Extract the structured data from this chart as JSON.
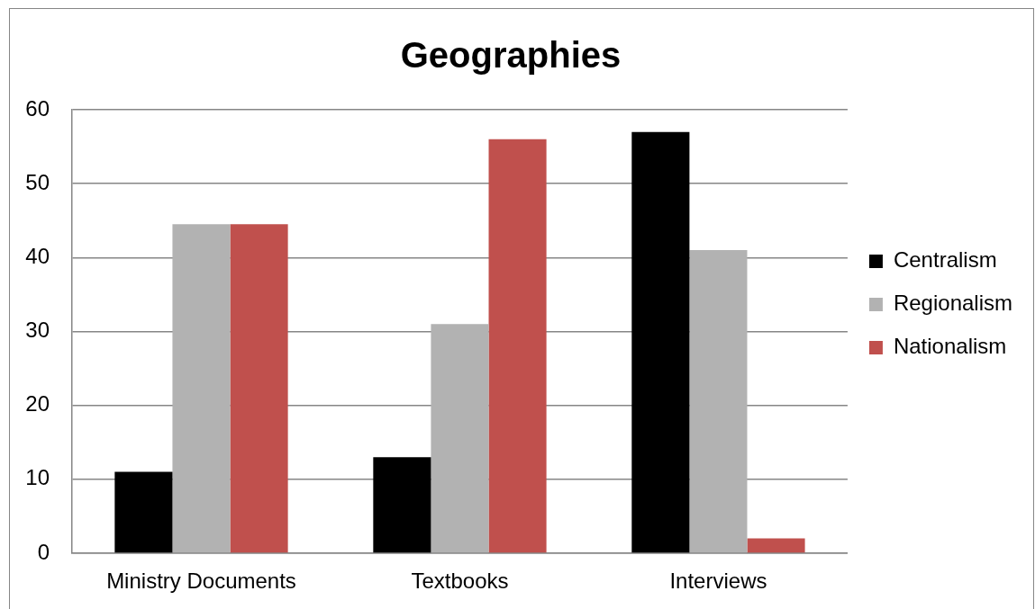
{
  "chart_data": {
    "type": "bar",
    "title": "Geographies",
    "categories": [
      "Ministry Documents",
      "Textbooks",
      "Interviews"
    ],
    "series": [
      {
        "name": "Centralism",
        "color": "#000000",
        "values": [
          11,
          13,
          57
        ]
      },
      {
        "name": "Regionalism",
        "color": "#b2b2b2",
        "values": [
          44.5,
          31,
          41
        ]
      },
      {
        "name": "Nationalism",
        "color": "#c0504d",
        "values": [
          44.5,
          56,
          2
        ]
      }
    ],
    "ylim": [
      0,
      60
    ],
    "yticks": [
      0,
      10,
      20,
      30,
      40,
      50,
      60
    ],
    "grid": "y",
    "legend": "right"
  }
}
